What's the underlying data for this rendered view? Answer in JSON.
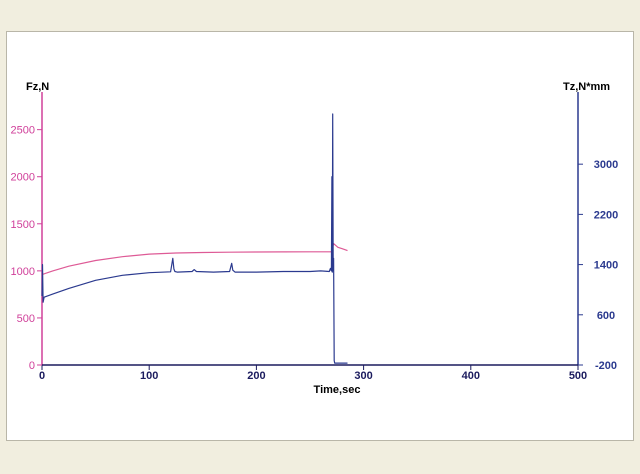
{
  "colors": {
    "background": "#f1eedf",
    "left_axis": "#d0409a",
    "right_axis": "#2b3a8f",
    "x_axis": "#1b1b5e",
    "fz_series": "#de5a96",
    "tz_series": "#2b3a8f"
  },
  "chart_data": {
    "type": "line",
    "xlabel": "Time,sec",
    "ylabel_left": "Fz,N",
    "ylabel_right": "Tz,N*mm",
    "xlim": [
      0,
      500
    ],
    "ylim_left": [
      0,
      2900
    ],
    "ylim_right": [
      -200,
      4150
    ],
    "x_ticks": [
      0,
      100,
      200,
      300,
      400,
      500
    ],
    "y_ticks_left": [
      0,
      500,
      1000,
      1500,
      2000,
      2500
    ],
    "y_ticks_right": [
      -200,
      600,
      1400,
      2200,
      3000
    ],
    "grid": false,
    "legend": "none",
    "series": [
      {
        "axis": "left",
        "color": "#de5a96",
        "x": [
          0,
          10,
          25,
          50,
          75,
          100,
          125,
          150,
          175,
          200,
          225,
          250,
          270,
          272,
          276,
          280,
          285
        ],
        "y": [
          960,
          1000,
          1050,
          1110,
          1150,
          1178,
          1190,
          1195,
          1198,
          1200,
          1201,
          1202,
          1202,
          1290,
          1250,
          1235,
          1215
        ]
      },
      {
        "axis": "right",
        "color": "#2b3a8f",
        "x": [
          0,
          0.5,
          1,
          2,
          10,
          25,
          50,
          75,
          100,
          120,
          122,
          123,
          124,
          126,
          140,
          142,
          144,
          160,
          175,
          177,
          178,
          180,
          200,
          225,
          250,
          260,
          268,
          269,
          270,
          270.4,
          270.8,
          271.2,
          271.6,
          272,
          272.6,
          273,
          273.4,
          274,
          274.5,
          275,
          285
        ],
        "y": [
          900,
          1400,
          800,
          880,
          930,
          1020,
          1150,
          1230,
          1270,
          1285,
          1500,
          1330,
          1290,
          1280,
          1290,
          1320,
          1290,
          1280,
          1290,
          1420,
          1310,
          1280,
          1280,
          1290,
          1290,
          1300,
          1290,
          1340,
          1300,
          2800,
          1280,
          3800,
          1300,
          1500,
          -130,
          -170,
          -170,
          -170,
          -170,
          -170,
          -170
        ]
      }
    ]
  }
}
